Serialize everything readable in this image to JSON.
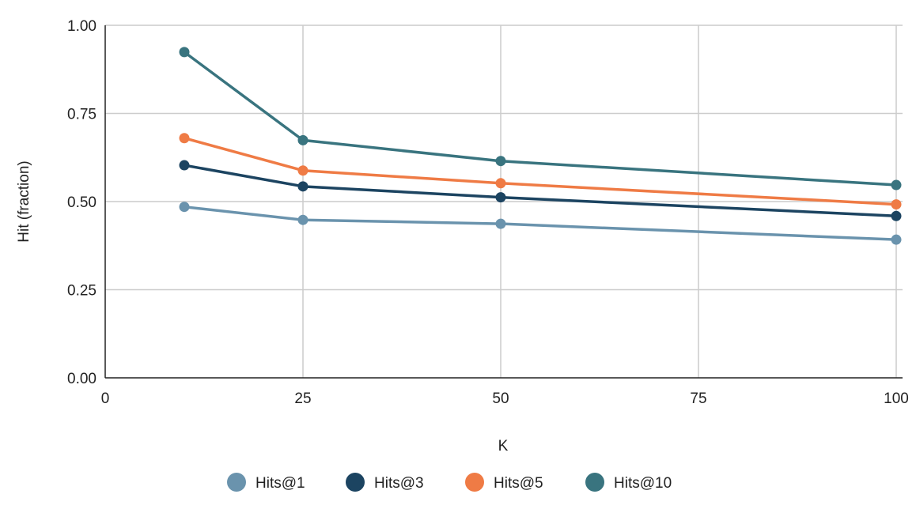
{
  "chart_data": {
    "type": "line",
    "title": "",
    "xlabel": "K",
    "ylabel": "Hit (fraction)",
    "xlim": [
      0,
      100
    ],
    "ylim": [
      0,
      1
    ],
    "xticks": [
      0,
      25,
      50,
      75,
      100
    ],
    "yticks": [
      0,
      0.25,
      0.5,
      0.75,
      1.0
    ],
    "xtick_labels": [
      "0",
      "25",
      "50",
      "75",
      "100"
    ],
    "ytick_labels": [
      "0.00",
      "0.25",
      "0.50",
      "0.75",
      "1.00"
    ],
    "grid": true,
    "legend_position": "bottom",
    "x": [
      10,
      25,
      50,
      100
    ],
    "series": [
      {
        "name": "Hits@1",
        "color": "#6a93ad",
        "values": [
          0.485,
          0.448,
          0.437,
          0.392
        ]
      },
      {
        "name": "Hits@3",
        "color": "#1c4461",
        "values": [
          0.603,
          0.543,
          0.512,
          0.459
        ]
      },
      {
        "name": "Hits@5",
        "color": "#ef7b45",
        "values": [
          0.68,
          0.588,
          0.552,
          0.492
        ]
      },
      {
        "name": "Hits@10",
        "color": "#39747f",
        "values": [
          0.924,
          0.674,
          0.615,
          0.547
        ]
      }
    ]
  }
}
